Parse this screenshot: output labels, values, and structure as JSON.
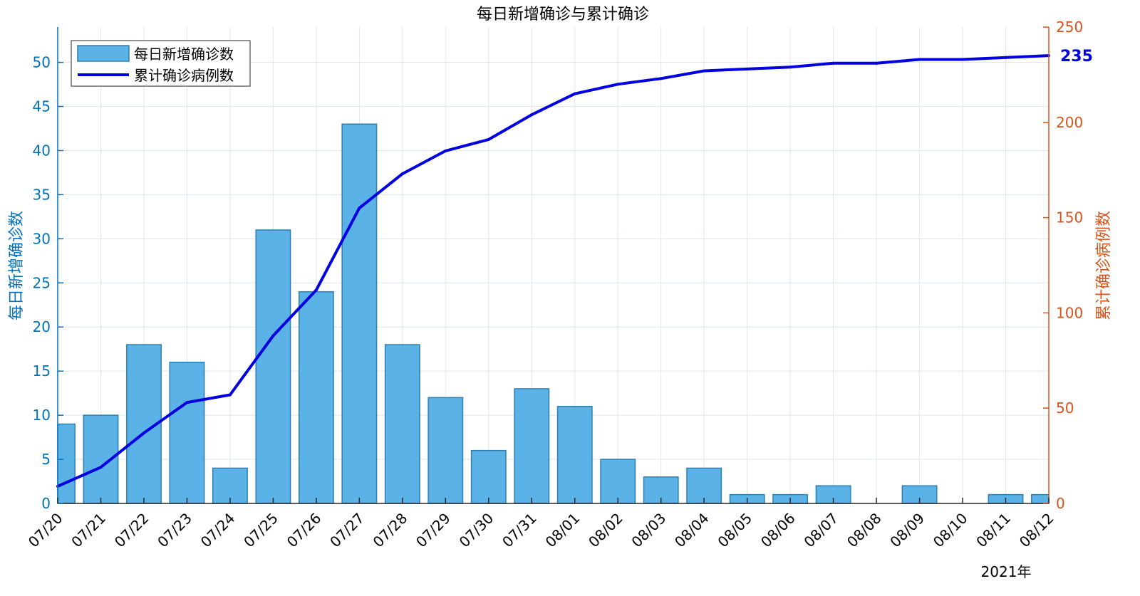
{
  "chart_data": {
    "type": "bar+line",
    "title": "每日新增确诊与累计确诊",
    "ylabel_left": "每日新增确诊数",
    "ylabel_right": "累计确诊病例数",
    "xlabel_note": "2021年",
    "categories": [
      "07/20",
      "07/21",
      "07/22",
      "07/23",
      "07/24",
      "07/25",
      "07/26",
      "07/27",
      "07/28",
      "07/29",
      "07/30",
      "07/31",
      "08/01",
      "08/02",
      "08/03",
      "08/04",
      "08/05",
      "08/06",
      "08/07",
      "08/08",
      "08/09",
      "08/10",
      "08/11",
      "08/12"
    ],
    "ylim_left": [
      0,
      54
    ],
    "yticks_left": [
      0,
      5,
      10,
      15,
      20,
      25,
      30,
      35,
      40,
      45,
      50
    ],
    "ylim_right": [
      0,
      250
    ],
    "yticks_right": [
      0,
      50,
      100,
      150,
      200,
      250
    ],
    "series": [
      {
        "name": "每日新增确诊数",
        "type": "bar",
        "axis": "left",
        "color": "#5AB2E6",
        "edge_color": "#2E7FAF",
        "values": [
          9,
          10,
          18,
          16,
          4,
          31,
          24,
          43,
          18,
          12,
          6,
          13,
          11,
          5,
          3,
          4,
          1,
          1,
          2,
          0,
          2,
          0,
          1,
          1
        ]
      },
      {
        "name": "累计确诊病例数",
        "type": "line",
        "axis": "right",
        "color": "#0000E0",
        "values": [
          9,
          19,
          37,
          53,
          57,
          88,
          112,
          155,
          173,
          185,
          191,
          204,
          215,
          220,
          223,
          227,
          228,
          229,
          231,
          231,
          233,
          233,
          234,
          235
        ]
      }
    ],
    "end_label": "235",
    "grid": true,
    "legend": "top-left"
  }
}
